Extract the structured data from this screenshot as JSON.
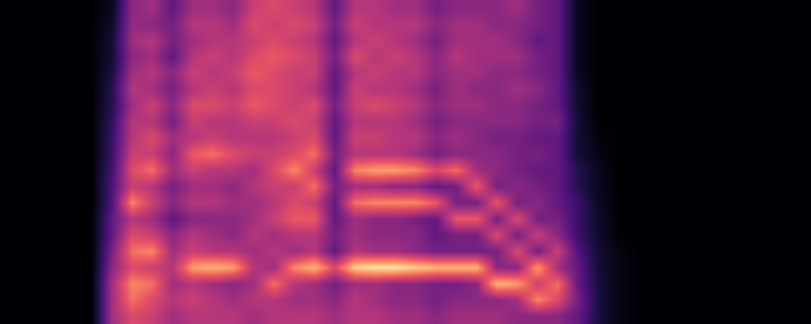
{
  "chart_data": {
    "type": "heatmap",
    "tick_labels": false,
    "zlim": [
      0,
      1
    ],
    "cells": [
      [
        0,
        0,
        0,
        0,
        0,
        0,
        0,
        0,
        0,
        0,
        0,
        0,
        0,
        0,
        0,
        0,
        0,
        0,
        0,
        0
      ],
      [
        0,
        0,
        0,
        0,
        0,
        0,
        0,
        0,
        0,
        0,
        0,
        0,
        0,
        0,
        0,
        0,
        0,
        0,
        0,
        0
      ],
      [
        0,
        0,
        0,
        0,
        0,
        0,
        0,
        0,
        0,
        0,
        0,
        0,
        0,
        0,
        0,
        0,
        0,
        0,
        0,
        0
      ],
      [
        0,
        0,
        0,
        0,
        0,
        0,
        0,
        0,
        0,
        0,
        0,
        0,
        0,
        0,
        0,
        0,
        0,
        0,
        0,
        0
      ],
      [
        0,
        0,
        0,
        0,
        0,
        0,
        0,
        0,
        0,
        0,
        0,
        0,
        0,
        0,
        0,
        0,
        0,
        0,
        0,
        0
      ],
      [
        0.05,
        0.08,
        0.1,
        0.1,
        0.12,
        0.15,
        0.15,
        0.18,
        0.2,
        0.2,
        0.22,
        0.25,
        0.25,
        0.3,
        0.3,
        0.35,
        0.4,
        0.45,
        0.45,
        0.45
      ],
      [
        0.4,
        0.42,
        0.45,
        0.4,
        0.45,
        0.5,
        0.45,
        0.5,
        0.5,
        0.55,
        0.6,
        0.55,
        0.75,
        0.5,
        0.6,
        0.7,
        0.6,
        0.75,
        0.7,
        0.6
      ],
      [
        0.45,
        0.4,
        0.5,
        0.45,
        0.5,
        0.45,
        0.55,
        0.5,
        0.6,
        0.55,
        0.7,
        0.5,
        0.55,
        0.45,
        0.55,
        0.75,
        0.55,
        0.7,
        0.6,
        0.55
      ],
      [
        0.3,
        0.35,
        0.35,
        0.3,
        0.4,
        0.35,
        0.4,
        0.35,
        0.45,
        0.4,
        0.45,
        0.35,
        0.4,
        0.3,
        0.4,
        0.45,
        0.5,
        0.45,
        0.5,
        0.45
      ],
      [
        0.45,
        0.5,
        0.45,
        0.5,
        0.55,
        0.5,
        0.6,
        0.55,
        0.5,
        0.65,
        0.55,
        0.45,
        0.5,
        0.4,
        0.5,
        0.55,
        0.8,
        0.5,
        0.55,
        0.5
      ],
      [
        0.45,
        0.5,
        0.5,
        0.55,
        0.5,
        0.55,
        0.6,
        0.5,
        0.55,
        0.7,
        0.5,
        0.45,
        0.5,
        0.4,
        0.45,
        0.5,
        0.85,
        0.45,
        0.5,
        0.5
      ],
      [
        0.4,
        0.45,
        0.5,
        0.5,
        0.55,
        0.5,
        0.55,
        0.5,
        0.5,
        0.6,
        0.5,
        0.4,
        0.45,
        0.4,
        0.4,
        0.5,
        0.8,
        0.4,
        0.45,
        0.5
      ],
      [
        0.55,
        0.6,
        0.55,
        0.6,
        0.65,
        0.6,
        0.65,
        0.55,
        0.5,
        0.55,
        0.45,
        0.5,
        0.45,
        0.45,
        0.5,
        0.45,
        0.5,
        0.45,
        0.5,
        0.45
      ],
      [
        0.6,
        0.55,
        0.6,
        0.65,
        0.6,
        0.6,
        0.6,
        0.55,
        0.5,
        0.55,
        0.6,
        0.55,
        0.5,
        0.55,
        0.45,
        0.5,
        0.45,
        0.7,
        0.5,
        0.5
      ],
      [
        0.55,
        0.6,
        0.55,
        0.6,
        0.55,
        0.55,
        0.55,
        0.6,
        0.55,
        0.6,
        0.75,
        0.55,
        0.6,
        0.65,
        0.5,
        0.45,
        0.75,
        0.5,
        0.45,
        0.5
      ],
      [
        0.5,
        0.55,
        0.5,
        0.55,
        0.55,
        0.5,
        0.6,
        0.55,
        0.6,
        0.7,
        0.55,
        0.7,
        0.55,
        0.65,
        0.5,
        0.5,
        0.85,
        0.45,
        0.45,
        0.5
      ],
      [
        0.3,
        0.35,
        0.3,
        0.35,
        0.3,
        0.3,
        0.35,
        0.3,
        0.3,
        0.35,
        0.3,
        0.35,
        0.3,
        0.3,
        0.35,
        0.3,
        0.6,
        0.35,
        0.4,
        0.45
      ],
      [
        0.5,
        0.55,
        0.5,
        0.6,
        0.5,
        0.55,
        0.55,
        0.5,
        0.55,
        0.5,
        0.75,
        0.45,
        0.7,
        0.45,
        0.45,
        0.5,
        0.9,
        0.45,
        0.5,
        0.5
      ],
      [
        0.5,
        0.5,
        0.55,
        0.5,
        0.55,
        0.5,
        0.6,
        0.5,
        0.55,
        0.5,
        0.8,
        0.45,
        0.75,
        0.4,
        0.4,
        0.45,
        0.95,
        0.45,
        0.45,
        0.5
      ],
      [
        0.45,
        0.5,
        0.5,
        0.55,
        0.5,
        0.5,
        0.55,
        0.5,
        0.5,
        0.5,
        0.8,
        0.4,
        0.75,
        0.4,
        0.4,
        0.45,
        0.95,
        0.4,
        0.4,
        0.45
      ],
      [
        0.45,
        0.5,
        0.45,
        0.5,
        0.5,
        0.45,
        0.5,
        0.45,
        0.5,
        0.45,
        0.75,
        0.4,
        0.75,
        0.35,
        0.4,
        0.4,
        0.9,
        0.4,
        0.4,
        0.45
      ],
      [
        0.35,
        0.4,
        0.35,
        0.4,
        0.4,
        0.35,
        0.4,
        0.35,
        0.4,
        0.35,
        0.6,
        0.3,
        0.65,
        0.3,
        0.3,
        0.35,
        0.85,
        0.35,
        0.35,
        0.4
      ],
      [
        0.4,
        0.45,
        0.45,
        0.5,
        0.45,
        0.45,
        0.45,
        0.4,
        0.45,
        0.4,
        0.7,
        0.35,
        0.35,
        0.65,
        0.35,
        0.35,
        0.85,
        0.35,
        0.4,
        0.45
      ],
      [
        0.4,
        0.45,
        0.45,
        0.45,
        0.45,
        0.4,
        0.45,
        0.4,
        0.4,
        0.4,
        0.45,
        0.65,
        0.35,
        0.65,
        0.35,
        0.35,
        0.85,
        0.4,
        0.4,
        0.45
      ],
      [
        0.4,
        0.4,
        0.45,
        0.45,
        0.4,
        0.4,
        0.4,
        0.4,
        0.35,
        0.4,
        0.4,
        0.35,
        0.65,
        0.35,
        0.6,
        0.35,
        0.4,
        0.85,
        0.4,
        0.45
      ],
      [
        0.45,
        0.4,
        0.4,
        0.45,
        0.4,
        0.45,
        0.4,
        0.4,
        0.35,
        0.35,
        0.35,
        0.4,
        0.35,
        0.6,
        0.35,
        0.6,
        0.4,
        0.8,
        0.45,
        0.4
      ],
      [
        0.35,
        0.35,
        0.3,
        0.35,
        0.35,
        0.4,
        0.35,
        0.35,
        0.3,
        0.35,
        0.3,
        0.35,
        0.4,
        0.35,
        0.55,
        0.35,
        0.8,
        0.55,
        0.75,
        0.4
      ],
      [
        0.3,
        0.3,
        0.3,
        0.3,
        0.3,
        0.3,
        0.3,
        0.35,
        0.3,
        0.3,
        0.3,
        0.3,
        0.3,
        0.35,
        0.4,
        0.55,
        0.45,
        0.7,
        0.6,
        0.4
      ],
      [
        0.05,
        0.05,
        0.05,
        0.05,
        0.05,
        0.08,
        0.08,
        0.1,
        0.1,
        0.1,
        0.15,
        0.15,
        0.2,
        0.2,
        0.2,
        0.25,
        0.3,
        0.3,
        0.35,
        0.3
      ],
      [
        0,
        0,
        0,
        0,
        0,
        0,
        0,
        0,
        0.02,
        0.03,
        0.05,
        0.05,
        0.06,
        0.08,
        0.08,
        0.1,
        0.1,
        0.12,
        0.12,
        0.12
      ],
      [
        0,
        0,
        0,
        0,
        0,
        0,
        0,
        0,
        0,
        0,
        0,
        0,
        0,
        0,
        0,
        0.03,
        0.03,
        0.03,
        0.03,
        0.03
      ],
      [
        0,
        0,
        0,
        0,
        0,
        0,
        0,
        0,
        0,
        0,
        0,
        0,
        0,
        0,
        0,
        0,
        0,
        0,
        0,
        0
      ],
      [
        0,
        0,
        0,
        0,
        0,
        0,
        0,
        0,
        0,
        0,
        0,
        0,
        0,
        0,
        0,
        0,
        0,
        0,
        0,
        0
      ],
      [
        0,
        0,
        0,
        0,
        0,
        0,
        0,
        0,
        0,
        0,
        0,
        0,
        0,
        0,
        0,
        0,
        0,
        0,
        0,
        0
      ],
      [
        0,
        0,
        0,
        0,
        0,
        0,
        0,
        0,
        0,
        0,
        0,
        0,
        0,
        0,
        0,
        0,
        0,
        0,
        0,
        0
      ],
      [
        0,
        0,
        0,
        0,
        0,
        0,
        0,
        0,
        0,
        0,
        0,
        0,
        0,
        0,
        0,
        0,
        0,
        0,
        0,
        0
      ],
      [
        0,
        0,
        0,
        0,
        0,
        0,
        0,
        0,
        0,
        0,
        0,
        0,
        0,
        0,
        0,
        0,
        0,
        0,
        0,
        0
      ],
      [
        0,
        0,
        0,
        0,
        0,
        0,
        0,
        0,
        0,
        0,
        0,
        0,
        0,
        0,
        0,
        0,
        0,
        0,
        0,
        0
      ],
      [
        0,
        0,
        0,
        0,
        0,
        0,
        0,
        0,
        0,
        0,
        0,
        0,
        0,
        0,
        0,
        0,
        0,
        0,
        0,
        0
      ],
      [
        0,
        0,
        0,
        0,
        0,
        0,
        0,
        0,
        0,
        0,
        0,
        0,
        0,
        0,
        0,
        0,
        0,
        0,
        0,
        0
      ]
    ]
  }
}
